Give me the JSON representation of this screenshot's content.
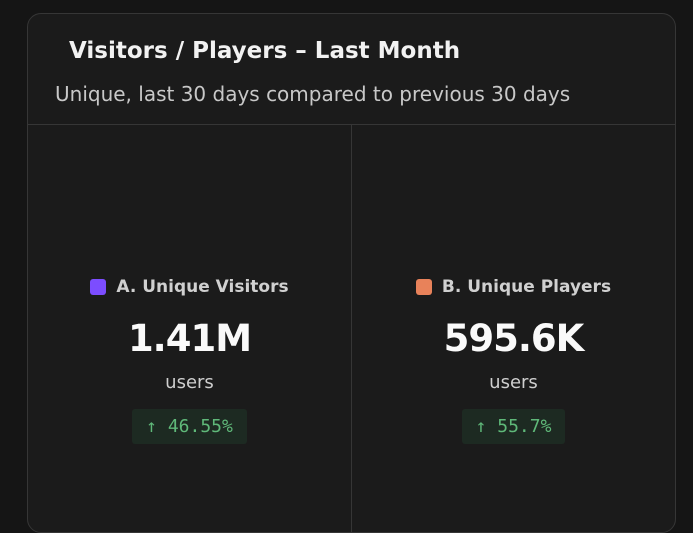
{
  "header": {
    "title": "Visitors / Players – Last Month",
    "subtitle": "Unique, last 30 days compared to previous 30 days"
  },
  "metrics": [
    {
      "label": "A. Unique Visitors",
      "color": "#7c4dff",
      "value": "1.41M",
      "unit": "users",
      "change": "↑ 46.55%"
    },
    {
      "label": "B. Unique Players",
      "color": "#e8825a",
      "value": "595.6K",
      "unit": "users",
      "change": "↑ 55.7%"
    }
  ]
}
